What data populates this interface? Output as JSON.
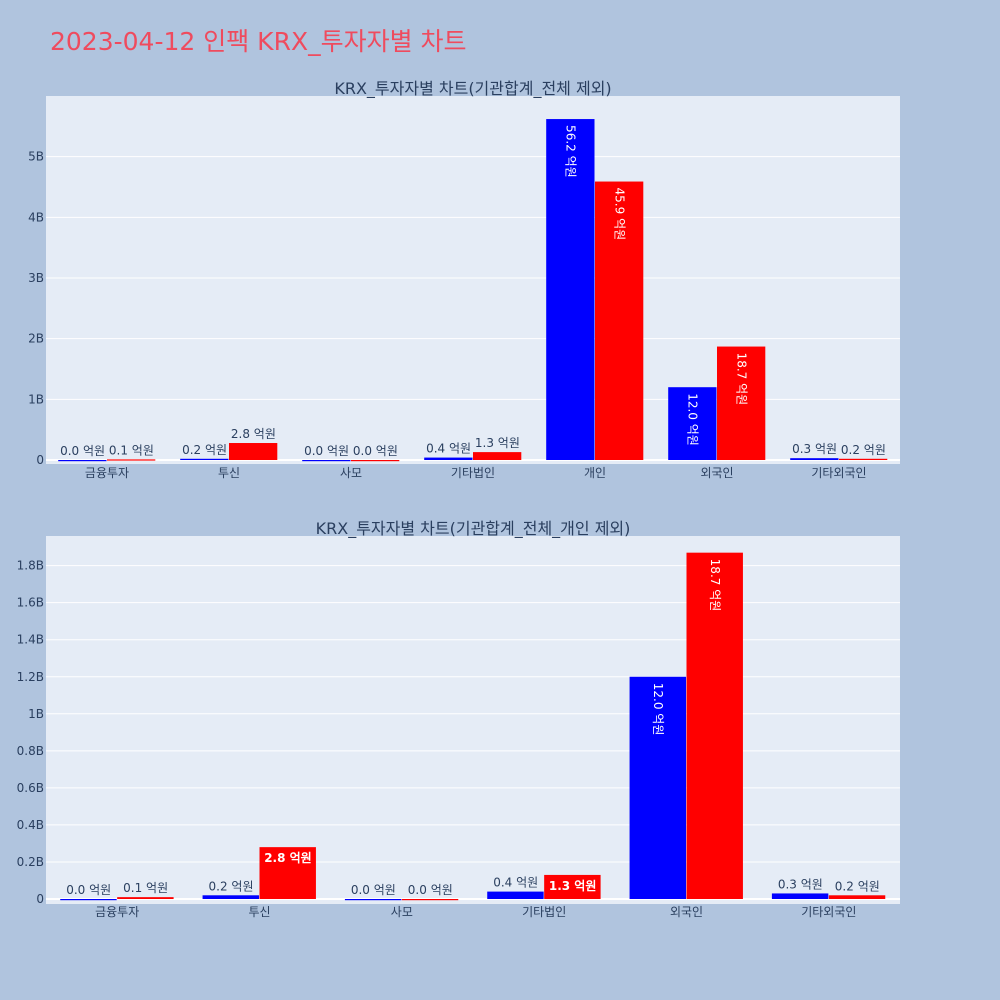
{
  "title": "2023-04-12 인팩 KRX_투자자별 차트",
  "colors": {
    "background": "#b0c4de",
    "plot_bg": "#e5ecf6",
    "title": "#ef4b5e",
    "series_blue": "#0000ff",
    "series_red": "#ff0000"
  },
  "chart_data": [
    {
      "type": "bar",
      "title": "KRX_투자자별 차트(기관합계_전체 제외)",
      "categories": [
        "금융투자",
        "투신",
        "사모",
        "기타법인",
        "개인",
        "외국인",
        "기타외국인"
      ],
      "series": [
        {
          "color": "#0000ff",
          "values": [
            0.0,
            20000000,
            0.0,
            40000000,
            5620000000,
            1200000000,
            30000000
          ],
          "labels": [
            "0.0 억원",
            "0.2 억원",
            "0.0 억원",
            "0.4 억원",
            "56.2 억원",
            "12.0 억원",
            "0.3 억원"
          ]
        },
        {
          "color": "#ff0000",
          "values": [
            10000000,
            280000000,
            0.0,
            130000000,
            4590000000,
            1870000000,
            20000000
          ],
          "labels": [
            "0.1 억원",
            "2.8 억원",
            "0.0 억원",
            "1.3 억원",
            "45.9 억원",
            "18.7 억원",
            "0.2 억원"
          ]
        }
      ],
      "ylim": [
        0,
        6000000000
      ],
      "yticks": [
        0,
        1000000000,
        2000000000,
        3000000000,
        4000000000,
        5000000000
      ],
      "ytick_labels": [
        "0",
        "1B",
        "2B",
        "3B",
        "4B",
        "5B"
      ],
      "grid": true
    },
    {
      "type": "bar",
      "title": "KRX_투자자별 차트(기관합계_전체_개인 제외)",
      "categories": [
        "금융투자",
        "투신",
        "사모",
        "기타법인",
        "외국인",
        "기타외국인"
      ],
      "series": [
        {
          "color": "#0000ff",
          "values": [
            0.0,
            20000000,
            0.0,
            40000000,
            1200000000,
            30000000
          ],
          "labels": [
            "0.0 억원",
            "0.2 억원",
            "0.0 억원",
            "0.4 억원",
            "12.0 억원",
            "0.3 억원"
          ]
        },
        {
          "color": "#ff0000",
          "values": [
            10000000,
            280000000,
            0.0,
            130000000,
            1870000000,
            20000000
          ],
          "labels": [
            "0.1 억원",
            "2.8 억원",
            "0.0 억원",
            "1.3 억원",
            "18.7 억원",
            "0.2 억원"
          ]
        }
      ],
      "ylim": [
        0,
        1960000000
      ],
      "yticks": [
        0,
        200000000,
        400000000,
        600000000,
        800000000,
        1000000000,
        1200000000,
        1400000000,
        1600000000,
        1800000000
      ],
      "ytick_labels": [
        "0",
        "0.2B",
        "0.4B",
        "0.6B",
        "0.8B",
        "1B",
        "1.2B",
        "1.4B",
        "1.6B",
        "1.8B"
      ],
      "grid": true
    }
  ]
}
